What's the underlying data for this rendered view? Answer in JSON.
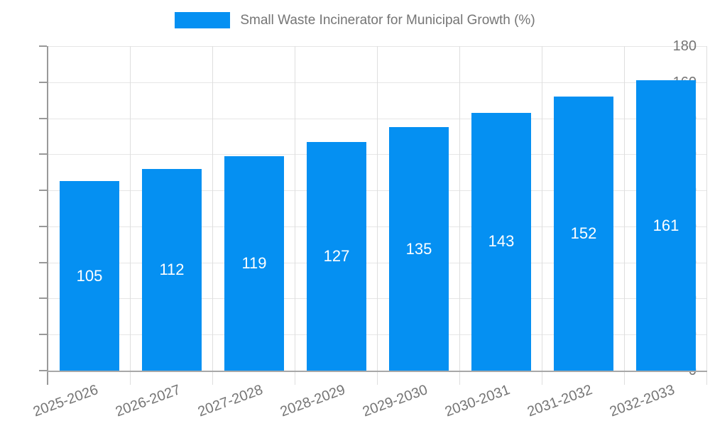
{
  "chart_data": {
    "type": "bar",
    "title": "Small Waste Incinerator for Municipal Growth (%)",
    "legend_label": "Small Waste Incinerator for Municipal Growth (%)",
    "legend_position": "top",
    "categories": [
      "2025-2026",
      "2026-2027",
      "2027-2028",
      "2028-2029",
      "2029-2030",
      "2030-2031",
      "2031-2032",
      "2032-2033"
    ],
    "values": [
      105,
      112,
      119,
      127,
      135,
      143,
      152,
      161
    ],
    "bar_labels": [
      "105",
      "112",
      "119",
      "127",
      "135",
      "143",
      "152",
      "161"
    ],
    "xlabel": "",
    "ylabel": "",
    "ylim": [
      0,
      180
    ],
    "yticks": [
      0,
      20,
      40,
      60,
      80,
      100,
      120,
      140,
      160,
      180
    ],
    "grid": true,
    "x_label_rotation_deg": -20,
    "colors": {
      "bar": "#0590f2",
      "bar_label": "#ffffff",
      "axis_line": "#999999",
      "grid_line_h": "#e6e6e6",
      "grid_line_v": "#dedede",
      "tick_label": "#757575",
      "legend_text": "#757575",
      "background": "#ffffff"
    }
  }
}
